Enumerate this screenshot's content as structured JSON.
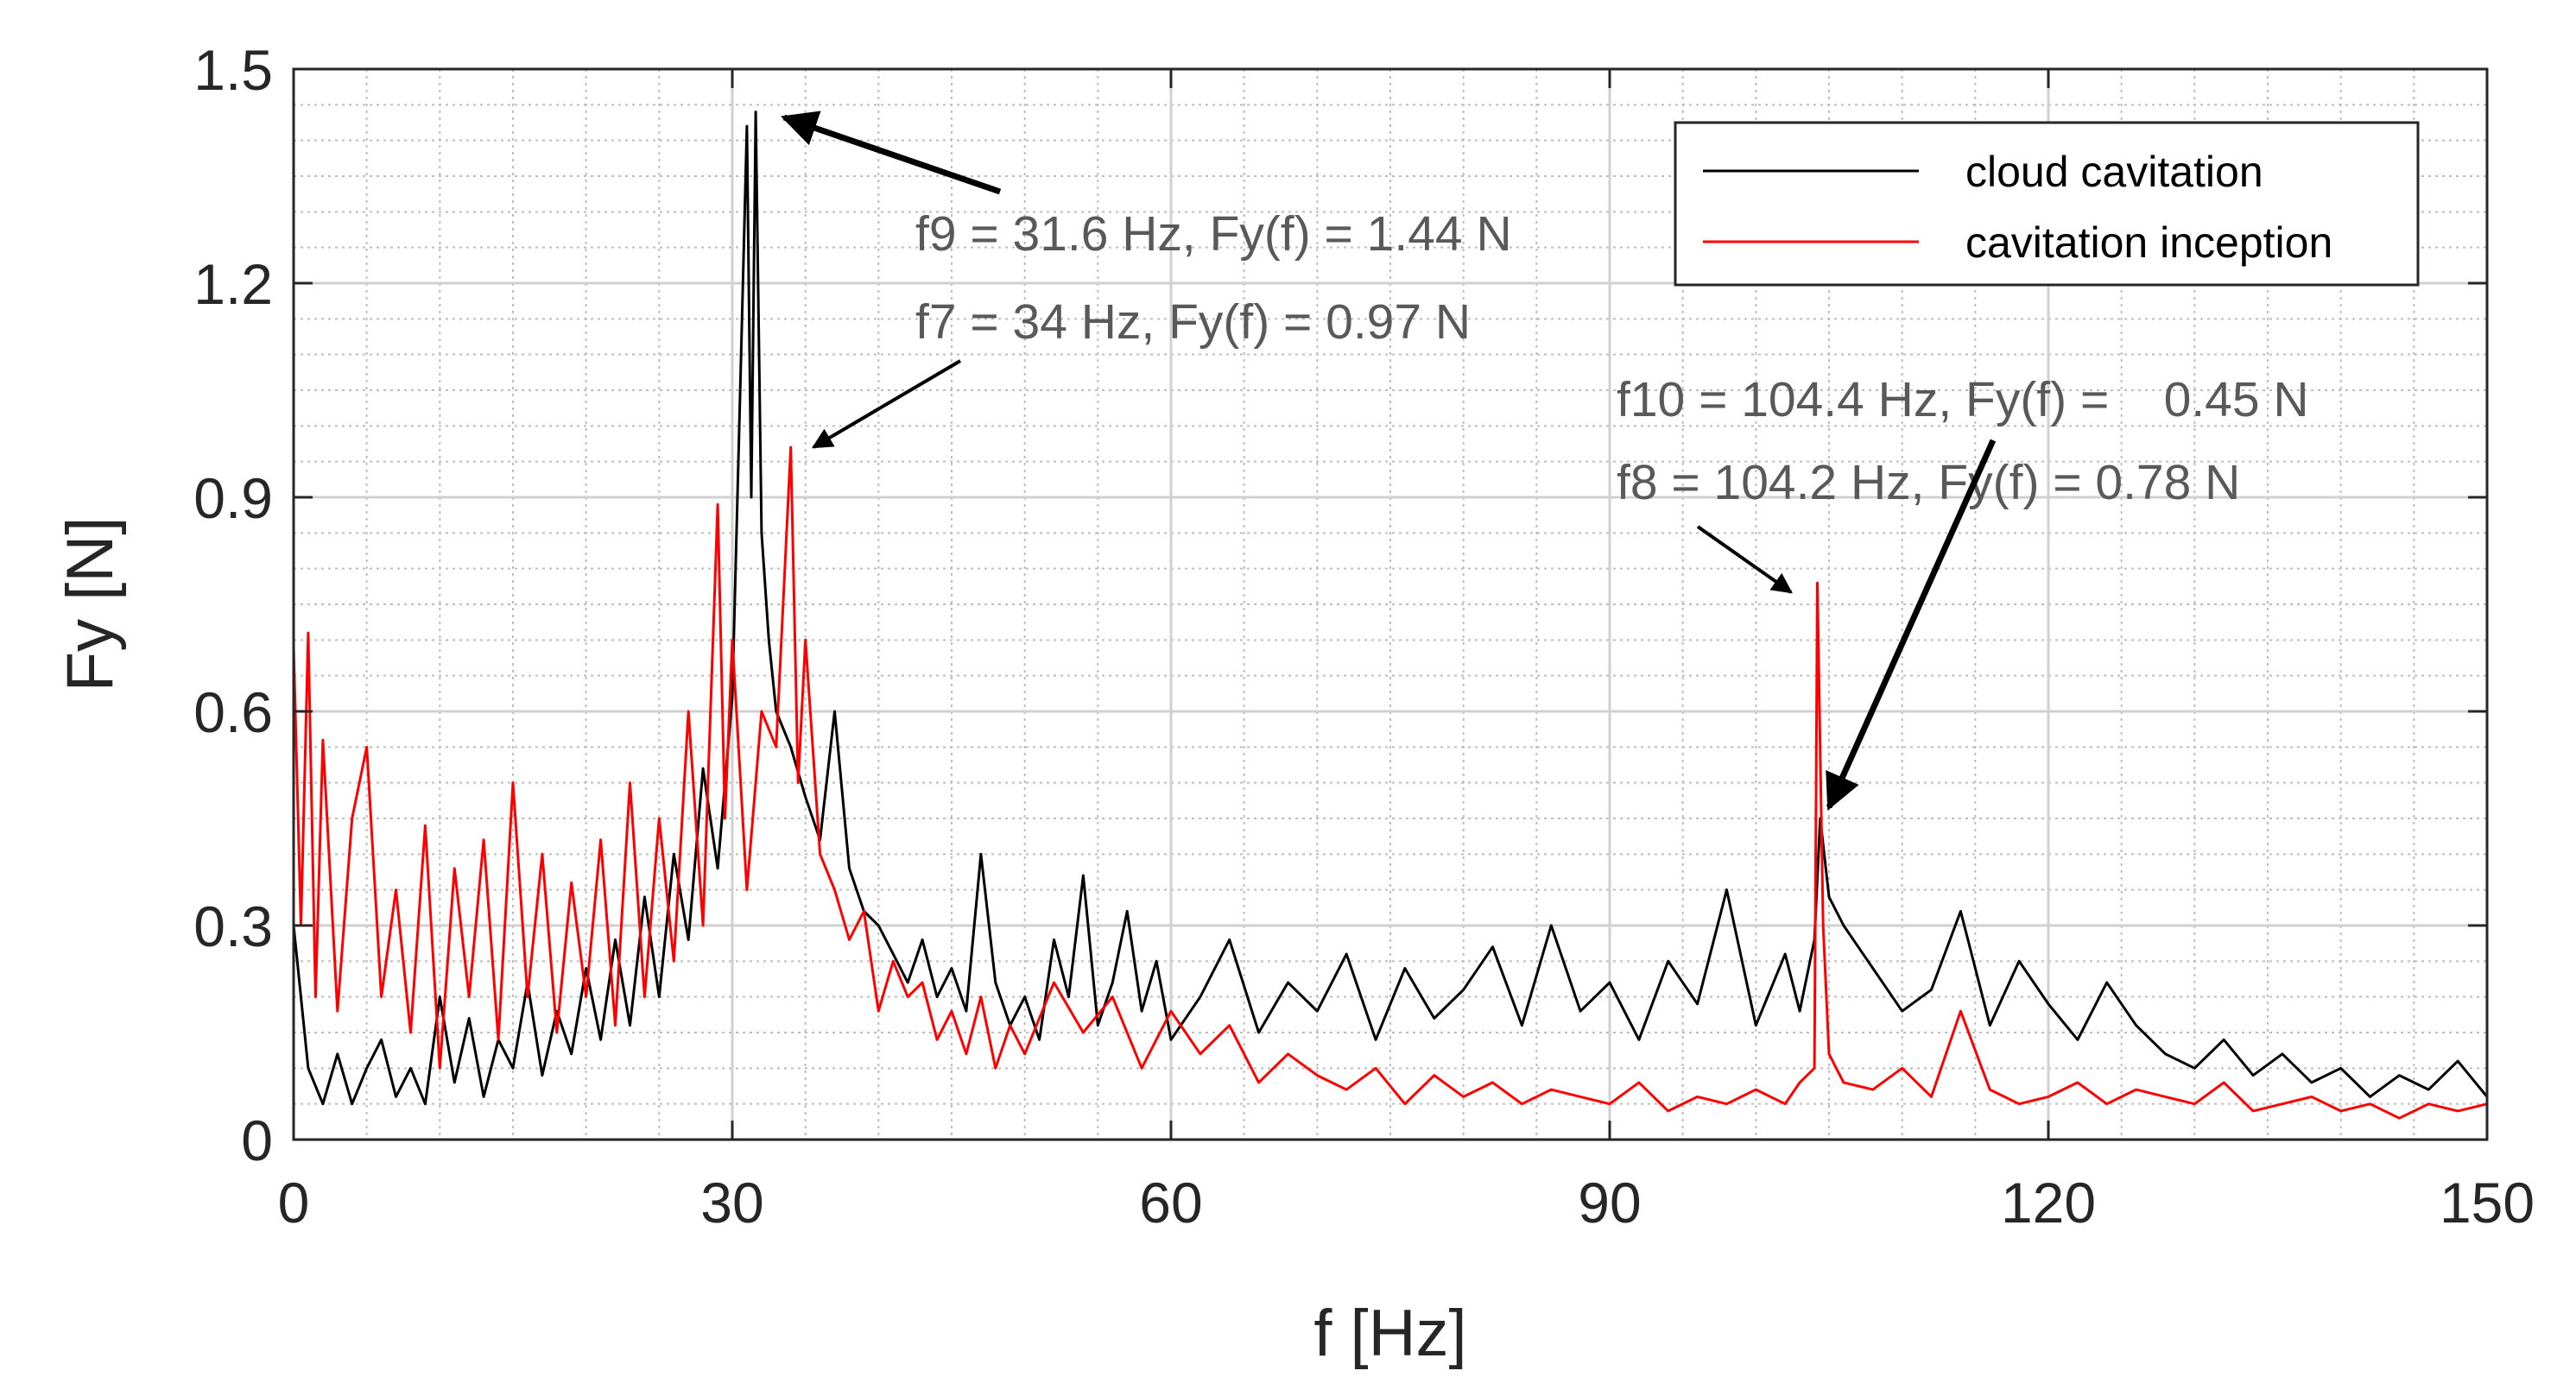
{
  "chart_data": {
    "type": "line",
    "xlabel": "f [Hz]",
    "ylabel": "Fy [N]",
    "xlim": [
      0,
      150
    ],
    "ylim": [
      0,
      1.5
    ],
    "xticks": [
      "0",
      "30",
      "60",
      "90",
      "120",
      "150"
    ],
    "yticks": [
      "0",
      "0.3",
      "0.6",
      "0.9",
      "1.2",
      "1.5"
    ],
    "grid": true,
    "legend_position": "top-right",
    "series": [
      {
        "name": "cloud cavitation",
        "color": "#000000",
        "x": [
          0,
          1,
          2,
          3,
          4,
          5,
          6,
          7,
          8,
          9,
          10,
          11,
          12,
          13,
          14,
          15,
          16,
          17,
          18,
          19,
          20,
          21,
          22,
          23,
          24,
          25,
          26,
          27,
          28,
          29,
          30,
          30.6,
          31,
          31.3,
          31.6,
          32,
          32.5,
          33,
          34,
          35,
          36,
          37,
          38,
          39,
          40,
          41,
          42,
          43,
          44,
          45,
          46,
          47,
          48,
          49,
          50,
          51,
          52,
          53,
          54,
          55,
          56,
          57,
          58,
          59,
          60,
          62,
          64,
          66,
          68,
          70,
          72,
          74,
          76,
          78,
          80,
          82,
          84,
          86,
          88,
          90,
          92,
          94,
          96,
          98,
          100,
          102,
          103,
          104,
          104.4,
          105,
          106,
          108,
          110,
          112,
          114,
          116,
          118,
          120,
          122,
          124,
          126,
          128,
          130,
          132,
          134,
          136,
          138,
          140,
          142,
          144,
          146,
          148,
          150
        ],
        "values": [
          0.3,
          0.1,
          0.05,
          0.12,
          0.05,
          0.1,
          0.14,
          0.06,
          0.1,
          0.05,
          0.2,
          0.08,
          0.17,
          0.06,
          0.14,
          0.1,
          0.22,
          0.09,
          0.18,
          0.12,
          0.24,
          0.14,
          0.28,
          0.16,
          0.34,
          0.2,
          0.4,
          0.28,
          0.52,
          0.38,
          0.62,
          1.1,
          1.42,
          0.9,
          1.44,
          0.85,
          0.7,
          0.6,
          0.55,
          0.48,
          0.42,
          0.6,
          0.38,
          0.32,
          0.3,
          0.26,
          0.22,
          0.28,
          0.2,
          0.24,
          0.18,
          0.4,
          0.22,
          0.16,
          0.2,
          0.14,
          0.28,
          0.2,
          0.37,
          0.16,
          0.22,
          0.32,
          0.18,
          0.25,
          0.14,
          0.2,
          0.28,
          0.15,
          0.22,
          0.18,
          0.26,
          0.14,
          0.24,
          0.17,
          0.21,
          0.27,
          0.16,
          0.3,
          0.18,
          0.22,
          0.14,
          0.25,
          0.19,
          0.35,
          0.16,
          0.26,
          0.18,
          0.28,
          0.45,
          0.34,
          0.3,
          0.24,
          0.18,
          0.21,
          0.32,
          0.16,
          0.25,
          0.19,
          0.14,
          0.22,
          0.16,
          0.12,
          0.1,
          0.14,
          0.09,
          0.12,
          0.08,
          0.1,
          0.06,
          0.09,
          0.07,
          0.11,
          0.06
        ]
      },
      {
        "name": "cavitation inception",
        "color": "#ff0000",
        "x": [
          0,
          0.5,
          1,
          1.5,
          2,
          3,
          4,
          5,
          6,
          7,
          8,
          9,
          10,
          11,
          12,
          13,
          14,
          15,
          16,
          17,
          18,
          19,
          20,
          21,
          22,
          23,
          24,
          25,
          26,
          27,
          28,
          29,
          29.5,
          30,
          31,
          32,
          33,
          34,
          34.5,
          35,
          36,
          37,
          38,
          39,
          40,
          41,
          42,
          43,
          44,
          45,
          46,
          47,
          48,
          49,
          50,
          52,
          54,
          56,
          58,
          60,
          62,
          64,
          66,
          68,
          70,
          72,
          74,
          76,
          78,
          80,
          82,
          84,
          86,
          88,
          90,
          92,
          94,
          96,
          98,
          100,
          102,
          103,
          104,
          104.2,
          104.6,
          105,
          106,
          108,
          110,
          112,
          114,
          116,
          118,
          120,
          122,
          124,
          126,
          128,
          130,
          132,
          134,
          136,
          138,
          140,
          142,
          144,
          146,
          148,
          150
        ],
        "values": [
          0.69,
          0.3,
          0.71,
          0.2,
          0.56,
          0.18,
          0.45,
          0.55,
          0.2,
          0.35,
          0.15,
          0.44,
          0.1,
          0.38,
          0.2,
          0.42,
          0.14,
          0.5,
          0.2,
          0.4,
          0.15,
          0.36,
          0.2,
          0.42,
          0.16,
          0.5,
          0.2,
          0.45,
          0.25,
          0.6,
          0.3,
          0.89,
          0.45,
          0.7,
          0.35,
          0.6,
          0.55,
          0.97,
          0.5,
          0.7,
          0.4,
          0.35,
          0.28,
          0.32,
          0.18,
          0.25,
          0.2,
          0.22,
          0.14,
          0.18,
          0.12,
          0.2,
          0.1,
          0.16,
          0.12,
          0.22,
          0.15,
          0.2,
          0.1,
          0.18,
          0.12,
          0.16,
          0.08,
          0.12,
          0.09,
          0.07,
          0.1,
          0.05,
          0.09,
          0.06,
          0.08,
          0.05,
          0.07,
          0.06,
          0.05,
          0.08,
          0.04,
          0.06,
          0.05,
          0.07,
          0.05,
          0.08,
          0.1,
          0.78,
          0.3,
          0.12,
          0.08,
          0.07,
          0.1,
          0.06,
          0.18,
          0.07,
          0.05,
          0.06,
          0.08,
          0.05,
          0.07,
          0.06,
          0.05,
          0.08,
          0.04,
          0.05,
          0.06,
          0.04,
          0.05,
          0.03,
          0.05,
          0.04,
          0.05
        ]
      }
    ],
    "annotations": [
      {
        "text": "f9 = 31.6 Hz, Fy(f) = 1.44 N",
        "x": 31.6,
        "y": 1.44
      },
      {
        "text": "f7 = 34 Hz, Fy(f) = 0.97 N",
        "x": 34,
        "y": 0.97
      },
      {
        "text": "f10 = 104.4 Hz, Fy(f) =    0.45 N",
        "x": 104.4,
        "y": 0.45
      },
      {
        "text": "f8 = 104.2 Hz, Fy(f) = 0.78 N",
        "x": 104.2,
        "y": 0.78
      }
    ]
  }
}
